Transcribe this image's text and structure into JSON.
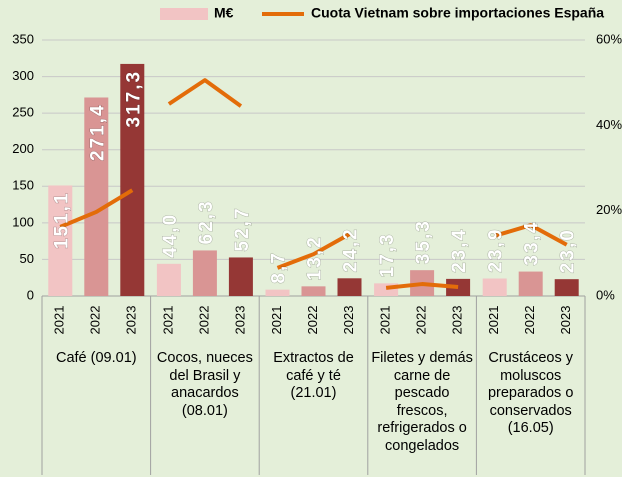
{
  "chart_data": {
    "type": "bar",
    "groups": [
      "Café (09.01)",
      "Cocos, nueces del Brasil y anacardos (08.01)",
      "Extractos de café y té (21.01)",
      "Filetes y demás carne de pescado frescos, refrigerados o congelados",
      "Crustáceos y moluscos preparados o conservados (16.05)"
    ],
    "categories": [
      "2021",
      "2022",
      "2023"
    ],
    "series": [
      {
        "name": "M€",
        "type": "bar",
        "color": "#f2c4c4",
        "colors": [
          "#f2c4c4",
          "#d99594",
          "#953735"
        ],
        "values": [
          [
            151.1,
            271.4,
            317.3
          ],
          [
            44.0,
            62.3,
            52.7
          ],
          [
            8.7,
            13.2,
            24.2
          ],
          [
            17.3,
            35.3,
            23.4
          ],
          [
            23.9,
            33.4,
            23.0
          ]
        ],
        "value_labels": [
          [
            "151,1",
            "271,4",
            "317,3"
          ],
          [
            "44,0",
            "62,3",
            "52,7"
          ],
          [
            "8,7",
            "13,2",
            "24,2"
          ],
          [
            "17,3",
            "35,3",
            "23,4"
          ],
          [
            "23,9",
            "33,4",
            "23,0"
          ]
        ]
      },
      {
        "name": "Cuota Vietnam sobre importaciones España",
        "type": "line",
        "axis": "y2",
        "color": "#e36c09",
        "values": [
          [
            16.2,
            19.7,
            24.8
          ],
          [
            45.0,
            50.6,
            44.5
          ],
          [
            6.6,
            9.8,
            14.5
          ],
          [
            1.9,
            2.8,
            2.1
          ],
          [
            14.1,
            16.6,
            12.0
          ]
        ]
      }
    ],
    "ylim": [
      0,
      350
    ],
    "yticks": [
      0,
      50,
      100,
      150,
      200,
      250,
      300,
      350
    ],
    "y2lim": [
      0,
      60
    ],
    "y2ticks": [
      {
        "value": 0,
        "label": "0%"
      },
      {
        "value": 20,
        "label": "20%"
      },
      {
        "value": 40,
        "label": "40%"
      },
      {
        "value": 60,
        "label": "60%"
      }
    ],
    "grid": true
  }
}
